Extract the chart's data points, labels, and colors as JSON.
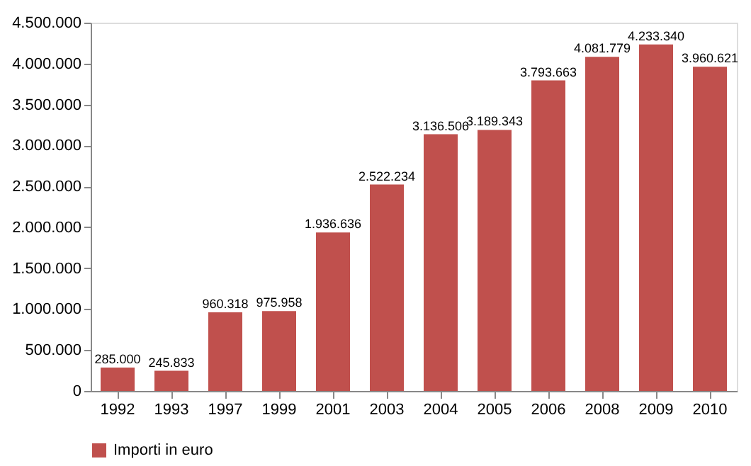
{
  "chart_data": {
    "type": "bar",
    "categories": [
      "1992",
      "1993",
      "1997",
      "1999",
      "2001",
      "2003",
      "2004",
      "2005",
      "2006",
      "2008",
      "2009",
      "2010"
    ],
    "series": [
      {
        "name": "Importi in euro",
        "color": "#c0504d",
        "values": [
          285000,
          245833,
          960318,
          975958,
          1936636,
          2522234,
          3136506,
          3189343,
          3793663,
          4081779,
          4233340,
          3960621
        ],
        "value_labels": [
          "285.000",
          "245.833",
          "960.318",
          "975.958",
          "1.936.636",
          "2.522.234",
          "3.136.506",
          "3.189.343",
          "3.793.663",
          "4.081.779",
          "4.233.340",
          "3.960.621"
        ]
      }
    ],
    "ylim": [
      0,
      4500000
    ],
    "yticks": [
      0,
      {
        "value": 500000,
        "label": "500.000"
      },
      {
        "value": 1000000,
        "label": "1.000.000"
      },
      {
        "value": 1500000,
        "label": "1.500.000"
      },
      {
        "value": 2000000,
        "label": "2.000.000"
      },
      {
        "value": 2500000,
        "label": "2.500.000"
      },
      {
        "value": 3000000,
        "label": "3.000.000"
      },
      {
        "value": 3500000,
        "label": "3.500.000"
      },
      {
        "value": 4000000,
        "label": "4.000.000"
      },
      {
        "value": 4500000,
        "label": "4.500.000"
      }
    ],
    "grid": false,
    "legend": "bottom"
  }
}
